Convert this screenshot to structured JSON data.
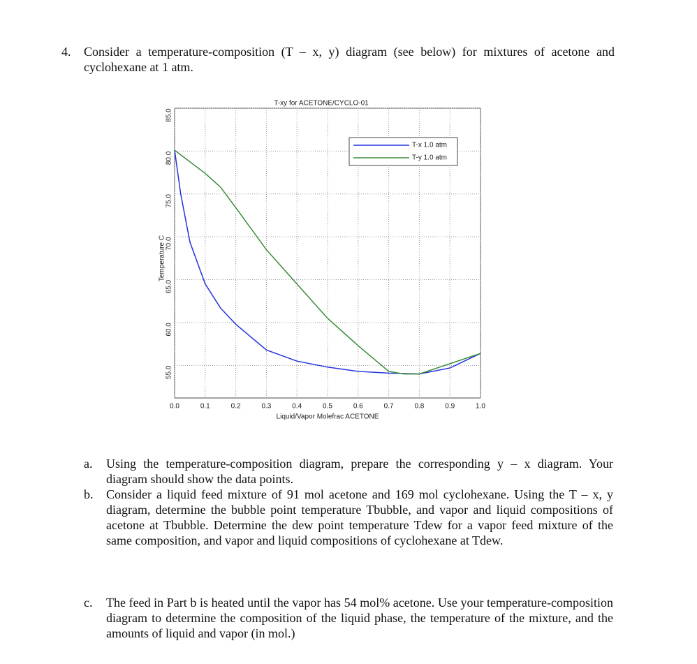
{
  "question": {
    "number": "4.",
    "text": "Consider a temperature-composition (T – x, y) diagram (see below) for mixtures of acetone and cyclohexane at 1 atm."
  },
  "chart_data": {
    "type": "line",
    "title": "T-xy for ACETONE/CYCLO-01",
    "x_label": "Liquid/Vapor Molefrac ACETONE",
    "y_label": "Temperature C",
    "xlim": [
      0,
      1
    ],
    "ylim": [
      51.2,
      85
    ],
    "xticks": [
      {
        "value": 0,
        "label": "0.0"
      },
      0.1,
      0.2,
      0.3,
      0.4,
      0.5,
      0.6,
      0.7,
      0.8,
      0.9,
      {
        "value": 1,
        "label": "1.0"
      }
    ],
    "yticks": [
      {
        "value": 55,
        "label": "55.0"
      },
      {
        "value": 60,
        "label": "60.0"
      },
      {
        "value": 65,
        "label": "65.0"
      },
      {
        "value": 70,
        "label": "70.0"
      },
      {
        "value": 75,
        "label": "75.0"
      },
      {
        "value": 80,
        "label": "80.0"
      },
      {
        "value": 85,
        "label": "85.0"
      }
    ],
    "grid": true,
    "legend": "upper right",
    "series": [
      {
        "name": "T-x 1.0 atm",
        "color": "#2233dd",
        "x": [
          0,
          0.02,
          0.05,
          0.1,
          0.15,
          0.2,
          0.3,
          0.4,
          0.5,
          0.6,
          0.7,
          0.8,
          0.9,
          1.0
        ],
        "values": [
          80.1,
          75.0,
          69.4,
          64.5,
          61.7,
          59.8,
          56.8,
          55.5,
          54.8,
          54.3,
          54.1,
          54.0,
          54.7,
          56.4
        ]
      },
      {
        "name": "T-y 1.0 atm",
        "color": "#3a8a3a",
        "x": [
          0,
          0.1,
          0.15,
          0.2,
          0.3,
          0.4,
          0.5,
          0.6,
          0.7,
          0.75,
          0.8,
          0.9,
          1.0
        ],
        "values": [
          80.1,
          77.4,
          75.8,
          73.4,
          68.5,
          64.5,
          60.5,
          57.3,
          54.3,
          54.0,
          54.0,
          55.2,
          56.4
        ]
      }
    ]
  },
  "parts": [
    {
      "label": "a.",
      "text": "Using the temperature-composition diagram, prepare the corresponding y – x diagram. Your diagram should show the data points."
    },
    {
      "label": "b.",
      "text": "Consider a liquid feed mixture of 91 mol acetone and 169 mol cyclohexane. Using the T – x, y diagram, determine the bubble point temperature Tbubble, and vapor and liquid compositions of acetone at Tbubble. Determine the dew point temperature Tdew for a vapor feed mixture of the same composition, and vapor and liquid compositions of cyclohexane at Tdew."
    },
    {
      "label": "c.",
      "text": "The feed in Part b is heated until the vapor has 54 mol% acetone. Use your temperature-composition diagram to determine the composition of the liquid phase, the temperature of the mixture, and the amounts of liquid and vapor (in mol.)"
    }
  ]
}
